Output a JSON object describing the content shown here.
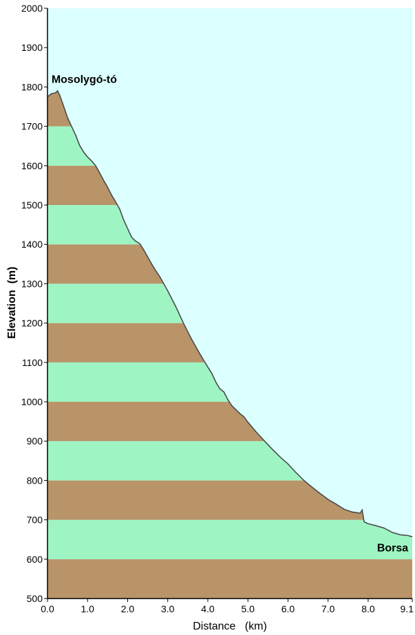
{
  "chart_data": {
    "type": "area",
    "xlabel": "Distance   (km)",
    "ylabel": "Elevation  (m)",
    "xlim": [
      0,
      9.1
    ],
    "ylim": [
      500,
      2000
    ],
    "x_ticks": [
      "0.0",
      "1.0",
      "2.0",
      "3.0",
      "4.0",
      "5.0",
      "6.0",
      "7.0",
      "8.0",
      "9.1"
    ],
    "y_ticks": [
      "500",
      "600",
      "700",
      "800",
      "900",
      "1000",
      "1100",
      "1200",
      "1300",
      "1400",
      "1500",
      "1600",
      "1700",
      "1800",
      "1900",
      "2000"
    ],
    "band_step": 100,
    "annotations": [
      {
        "text": "Mosolygó-tó",
        "x": 0.1,
        "y": 1810,
        "anchor": "start"
      },
      {
        "text": "Borsa",
        "x": 9.0,
        "y": 620,
        "anchor": "end"
      }
    ],
    "series": [
      {
        "x": [
          0.0,
          0.1,
          0.2,
          0.25,
          0.3,
          0.4,
          0.5,
          0.6,
          0.7,
          0.8,
          0.9,
          1.0,
          1.1,
          1.2,
          1.3,
          1.4,
          1.5,
          1.6,
          1.7,
          1.8,
          1.9,
          2.0,
          2.1,
          2.2,
          2.3,
          2.4,
          2.5,
          2.6,
          2.7,
          2.8,
          2.9,
          3.0,
          3.1,
          3.2,
          3.3,
          3.4,
          3.5,
          3.6,
          3.7,
          3.8,
          3.9,
          4.0,
          4.1,
          4.2,
          4.3,
          4.4,
          4.5,
          4.6,
          4.7,
          4.8,
          4.9,
          5.0,
          5.2,
          5.4,
          5.6,
          5.8,
          6.0,
          6.2,
          6.4,
          6.6,
          6.8,
          7.0,
          7.2,
          7.4,
          7.6,
          7.8,
          7.85,
          7.9,
          8.0,
          8.2,
          8.4,
          8.6,
          8.8,
          9.0,
          9.1
        ],
        "y": [
          1775,
          1783,
          1785,
          1790,
          1780,
          1752,
          1722,
          1700,
          1678,
          1652,
          1635,
          1622,
          1612,
          1600,
          1582,
          1563,
          1545,
          1525,
          1508,
          1490,
          1462,
          1440,
          1418,
          1408,
          1402,
          1386,
          1368,
          1350,
          1333,
          1318,
          1300,
          1282,
          1262,
          1242,
          1220,
          1198,
          1178,
          1158,
          1140,
          1122,
          1105,
          1088,
          1072,
          1050,
          1033,
          1025,
          1005,
          990,
          980,
          970,
          962,
          948,
          924,
          902,
          880,
          860,
          842,
          820,
          800,
          783,
          767,
          752,
          740,
          727,
          720,
          717,
          725,
          695,
          690,
          685,
          679,
          668,
          662,
          660,
          657
        ]
      }
    ]
  }
}
